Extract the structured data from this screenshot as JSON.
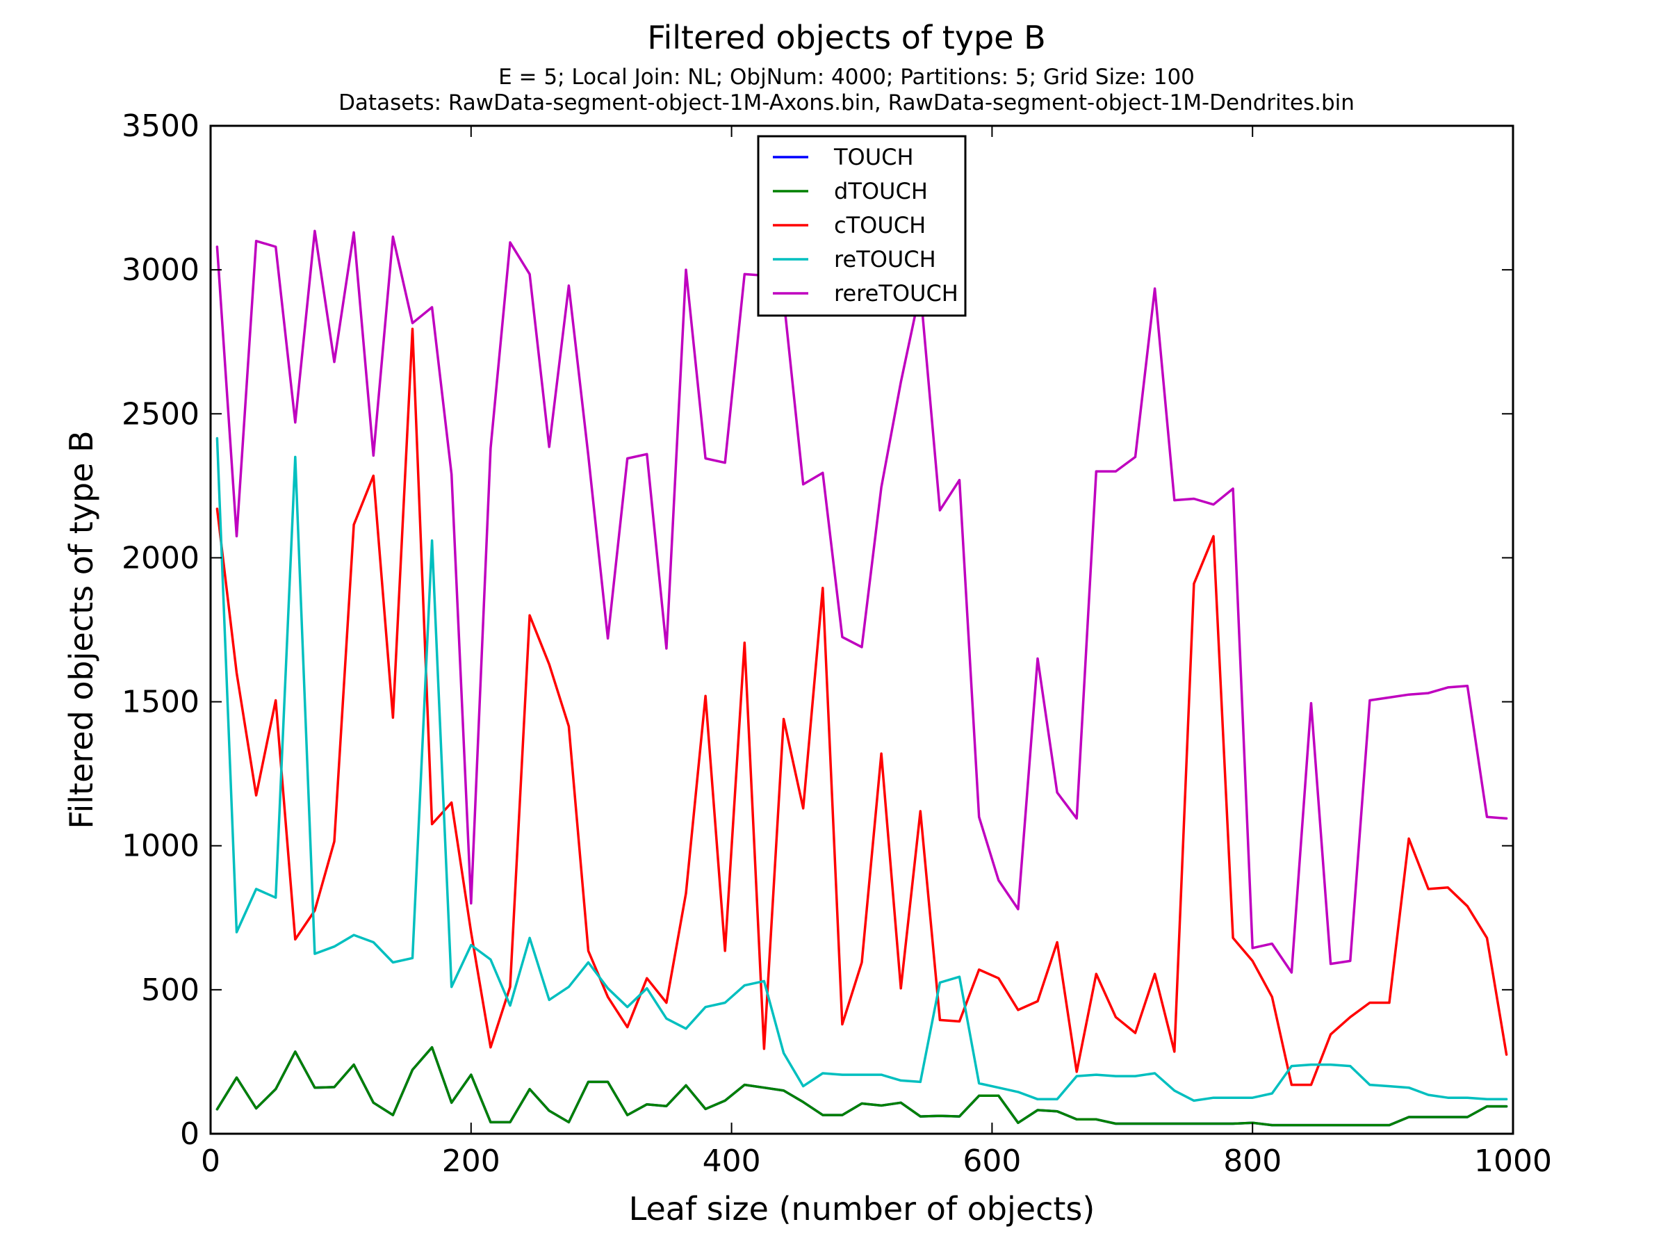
{
  "chart_data": {
    "type": "line",
    "title": "Filtered objects of type B",
    "subtitle_lines": [
      "E = 5; Local Join: NL; ObjNum: 4000; Partitions: 5; Grid Size: 100",
      "Datasets: RawData-segment-object-1M-Axons.bin, RawData-segment-object-1M-Dendrites.bin"
    ],
    "xlabel": "Leaf size (number of objects)",
    "ylabel": "Filtered objects of type B",
    "xlim": [
      0,
      1000
    ],
    "ylim": [
      0,
      3500
    ],
    "xticks": [
      0,
      200,
      400,
      600,
      800,
      1000
    ],
    "yticks": [
      0,
      500,
      1000,
      1500,
      2000,
      2500,
      3000,
      3500
    ],
    "grid": false,
    "legend_position": "upper center",
    "x": [
      5,
      20,
      35,
      50,
      65,
      80,
      95,
      110,
      125,
      140,
      155,
      170,
      185,
      200,
      215,
      230,
      245,
      260,
      275,
      290,
      305,
      320,
      335,
      350,
      365,
      380,
      395,
      410,
      425,
      440,
      455,
      470,
      485,
      500,
      515,
      530,
      545,
      560,
      575,
      590,
      605,
      620,
      635,
      650,
      665,
      680,
      695,
      710,
      725,
      740,
      755,
      770,
      785,
      800,
      815,
      830,
      845,
      860,
      875,
      890,
      905,
      920,
      935,
      950,
      965,
      980,
      995
    ],
    "series": [
      {
        "name": "TOUCH",
        "color": "#0000ff",
        "values": [
          85,
          195,
          88,
          155,
          285,
          160,
          162,
          240,
          108,
          65,
          222,
          300,
          108,
          205,
          40,
          40,
          155,
          80,
          40,
          180,
          180,
          65,
          102,
          96,
          168,
          86,
          115,
          170,
          160,
          150,
          110,
          65,
          65,
          105,
          98,
          108,
          60,
          62,
          60,
          132,
          132,
          38,
          82,
          78,
          50,
          50,
          35,
          35,
          35,
          35,
          35,
          35,
          35,
          38,
          30,
          30,
          30,
          30,
          30,
          30,
          30,
          58,
          58,
          58,
          58,
          95,
          95
        ]
      },
      {
        "name": "dTOUCH",
        "color": "#008000",
        "values": [
          85,
          195,
          88,
          155,
          285,
          160,
          162,
          240,
          108,
          65,
          222,
          300,
          108,
          205,
          40,
          40,
          155,
          80,
          40,
          180,
          180,
          65,
          102,
          96,
          168,
          86,
          115,
          170,
          160,
          150,
          110,
          65,
          65,
          105,
          98,
          108,
          60,
          62,
          60,
          132,
          132,
          38,
          82,
          78,
          50,
          50,
          35,
          35,
          35,
          35,
          35,
          35,
          35,
          38,
          30,
          30,
          30,
          30,
          30,
          30,
          30,
          58,
          58,
          58,
          58,
          95,
          95
        ]
      },
      {
        "name": "cTOUCH",
        "color": "#ff0000",
        "values": [
          2170,
          1600,
          1175,
          1505,
          675,
          775,
          1015,
          2115,
          2285,
          1445,
          2795,
          1075,
          1150,
          700,
          300,
          510,
          1800,
          1630,
          1415,
          635,
          475,
          370,
          540,
          455,
          835,
          1520,
          635,
          1705,
          295,
          1440,
          1130,
          1895,
          380,
          595,
          1320,
          505,
          1120,
          395,
          390,
          570,
          540,
          430,
          460,
          665,
          215,
          555,
          405,
          350,
          555,
          285,
          1910,
          2075,
          680,
          600,
          475,
          170,
          170,
          345,
          405,
          455,
          455,
          1025,
          850,
          855,
          790,
          680,
          275
        ]
      },
      {
        "name": "reTOUCH",
        "color": "#00bfbf",
        "values": [
          2415,
          700,
          850,
          820,
          2350,
          625,
          650,
          690,
          665,
          595,
          610,
          2060,
          510,
          655,
          605,
          445,
          680,
          465,
          510,
          595,
          505,
          440,
          505,
          400,
          365,
          440,
          455,
          515,
          530,
          280,
          165,
          210,
          205,
          205,
          205,
          185,
          180,
          525,
          545,
          175,
          160,
          145,
          120,
          120,
          200,
          205,
          200,
          200,
          210,
          150,
          115,
          125,
          125,
          125,
          140,
          235,
          240,
          240,
          235,
          170,
          165,
          160,
          135,
          125,
          125,
          120,
          120
        ]
      },
      {
        "name": "rereTOUCH",
        "color": "#bf00bf",
        "values": [
          3080,
          2075,
          3100,
          3080,
          2470,
          3135,
          2680,
          3130,
          2355,
          3115,
          2815,
          2870,
          2290,
          800,
          2380,
          3095,
          2985,
          2385,
          2945,
          2355,
          1720,
          2345,
          2360,
          1685,
          3000,
          2345,
          2330,
          2985,
          2980,
          2900,
          2255,
          2295,
          1725,
          1690,
          2245,
          2610,
          2930,
          2165,
          2270,
          1100,
          880,
          780,
          1650,
          1185,
          1095,
          2300,
          2300,
          2350,
          2935,
          2200,
          2205,
          2185,
          2240,
          645,
          660,
          560,
          1495,
          590,
          600,
          1505,
          1515,
          1525,
          1530,
          1550,
          1555,
          1100,
          1095
        ]
      }
    ]
  }
}
